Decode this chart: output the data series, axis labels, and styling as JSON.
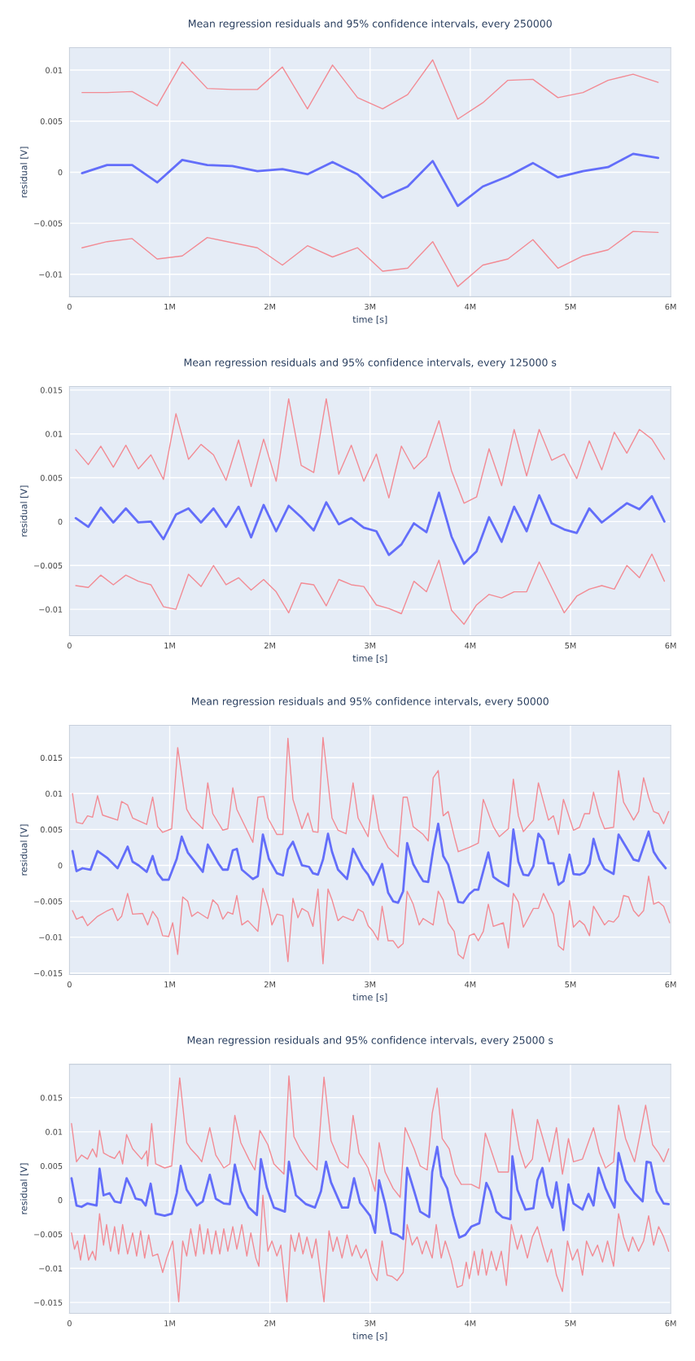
{
  "chart_data": [
    {
      "type": "line",
      "title": "Mean regression residuals and 95% confidence intervals, every 250000",
      "xlabel": "time [s]",
      "ylabel": "residual [V]",
      "grid": true,
      "x": [
        125000,
        375000,
        625000,
        875000,
        1125000,
        1375000,
        1625000,
        1875000,
        2125000,
        2375000,
        2625000,
        2875000,
        3125000,
        3375000,
        3625000,
        3875000,
        4125000,
        4375000,
        4625000,
        4875000,
        5125000,
        5375000,
        5625000,
        5875000
      ],
      "xlim": [
        0,
        6000000
      ],
      "xticks": [
        0,
        {
          "value": 1000000,
          "label": "1M"
        },
        {
          "value": 2000000,
          "label": "2M"
        },
        {
          "value": 3000000,
          "label": "3M"
        },
        {
          "value": 4000000,
          "label": "4M"
        },
        {
          "value": 5000000,
          "label": "5M"
        },
        {
          "value": 6000000,
          "label": "6M"
        }
      ],
      "ylim": [
        -0.0122,
        0.0122
      ],
      "yticks": [
        {
          "value": -0.01,
          "label": "−0.01"
        },
        {
          "value": -0.005,
          "label": "−0.005"
        },
        0,
        0.005,
        0.01
      ],
      "series": [
        {
          "color": "#f28b94",
          "values": [
            0.0078,
            0.0078,
            0.0079,
            0.0065,
            0.0108,
            0.0082,
            0.0081,
            0.0081,
            0.0103,
            0.0062,
            0.0105,
            0.0073,
            0.0062,
            0.0076,
            0.011,
            0.0052,
            0.0068,
            0.009,
            0.0091,
            0.0073,
            0.0078,
            0.009,
            0.0096,
            0.0088
          ]
        },
        {
          "color": "#f28b94",
          "values": [
            -0.0074,
            -0.0068,
            -0.0065,
            -0.0085,
            -0.0082,
            -0.0064,
            -0.0069,
            -0.0074,
            -0.0091,
            -0.0072,
            -0.0083,
            -0.0074,
            -0.0097,
            -0.0094,
            -0.0068,
            -0.0112,
            -0.0091,
            -0.0085,
            -0.0066,
            -0.0094,
            -0.0082,
            -0.0076,
            -0.0058,
            -0.0059
          ]
        },
        {
          "color": "#636efa",
          "values": [
            -0.0001,
            0.0007,
            0.0007,
            -0.001,
            0.0012,
            0.0007,
            0.0006,
            0.0001,
            0.0003,
            -0.0002,
            0.001,
            -0.0002,
            -0.0025,
            -0.0014,
            0.0011,
            -0.0033,
            -0.0014,
            -0.0004,
            0.0009,
            -0.0005,
            0.0001,
            0.0005,
            0.0018,
            0.0014
          ]
        }
      ]
    },
    {
      "type": "line",
      "title": "Mean regression residuals and 95% confidence intervals, every 125000 s",
      "xlabel": "time [s]",
      "ylabel": "residual [V]",
      "grid": true,
      "x": [
        62500,
        187500,
        312500,
        437500,
        562500,
        687500,
        812500,
        937500,
        1062500,
        1187500,
        1312500,
        1437500,
        1562500,
        1687500,
        1812500,
        1937500,
        2062500,
        2187500,
        2312500,
        2437500,
        2562500,
        2687500,
        2812500,
        2937500,
        3062500,
        3187500,
        3312500,
        3437500,
        3562500,
        3687500,
        3812500,
        3937500,
        4062500,
        4187500,
        4312500,
        4437500,
        4562500,
        4687500,
        4812500,
        4937500,
        5062500,
        5187500,
        5312500,
        5437500,
        5562500,
        5687500,
        5812500,
        5937500
      ],
      "xlim": [
        0,
        6000000
      ],
      "xticks": [
        0,
        {
          "value": 1000000,
          "label": "1M"
        },
        {
          "value": 2000000,
          "label": "2M"
        },
        {
          "value": 3000000,
          "label": "3M"
        },
        {
          "value": 4000000,
          "label": "4M"
        },
        {
          "value": 5000000,
          "label": "5M"
        },
        {
          "value": 6000000,
          "label": "6M"
        }
      ],
      "ylim": [
        -0.013,
        0.0154
      ],
      "yticks": [
        {
          "value": -0.01,
          "label": "−0.01"
        },
        {
          "value": -0.005,
          "label": "−0.005"
        },
        0,
        0.005,
        0.01,
        0.015
      ],
      "series": [
        {
          "color": "#f28b94",
          "values": [
            0.0082,
            0.0065,
            0.0086,
            0.0062,
            0.0087,
            0.006,
            0.0076,
            0.0048,
            0.0123,
            0.0071,
            0.0088,
            0.0076,
            0.0047,
            0.0093,
            0.004,
            0.0094,
            0.0046,
            0.014,
            0.0064,
            0.0056,
            0.014,
            0.0054,
            0.0087,
            0.0046,
            0.0077,
            0.0027,
            0.0086,
            0.006,
            0.0074,
            0.0115,
            0.0058,
            0.0021,
            0.0028,
            0.0083,
            0.0041,
            0.0105,
            0.0052,
            0.0105,
            0.007,
            0.0077,
            0.0049,
            0.0092,
            0.0059,
            0.0102,
            0.0078,
            0.0105,
            0.0094,
            0.0071
          ]
        },
        {
          "color": "#f28b94",
          "values": [
            -0.0073,
            -0.0075,
            -0.0061,
            -0.0072,
            -0.0061,
            -0.0068,
            -0.0072,
            -0.0097,
            -0.01,
            -0.006,
            -0.0074,
            -0.005,
            -0.0072,
            -0.0064,
            -0.0078,
            -0.0066,
            -0.008,
            -0.0104,
            -0.007,
            -0.0072,
            -0.0096,
            -0.0066,
            -0.0072,
            -0.0074,
            -0.0095,
            -0.0099,
            -0.0105,
            -0.0068,
            -0.008,
            -0.0044,
            -0.0101,
            -0.0117,
            -0.0095,
            -0.0083,
            -0.0087,
            -0.008,
            -0.008,
            -0.0046,
            -0.0075,
            -0.0104,
            -0.0085,
            -0.0077,
            -0.0073,
            -0.0077,
            -0.005,
            -0.0064,
            -0.0037,
            -0.0068
          ]
        },
        {
          "color": "#636efa",
          "values": [
            0.0004,
            -0.0006,
            0.0016,
            -0.0001,
            0.0015,
            -0.0001,
            0,
            -0.002,
            0.0008,
            0.0015,
            -0.0001,
            0.0015,
            -0.0006,
            0.0017,
            -0.0018,
            0.0019,
            -0.0011,
            0.0018,
            0.0005,
            -0.001,
            0.0022,
            -0.0003,
            0.0004,
            -0.0007,
            -0.0011,
            -0.0038,
            -0.0026,
            -0.0002,
            -0.0012,
            0.0033,
            -0.0017,
            -0.0048,
            -0.0034,
            0.0005,
            -0.0023,
            0.0017,
            -0.0011,
            0.003,
            -0.0002,
            -0.0009,
            -0.0013,
            0.0015,
            -0.0001,
            0.001,
            0.0021,
            0.0014,
            0.0029,
            0
          ]
        }
      ]
    },
    {
      "type": "line",
      "title": "Mean regression residuals and 95% confidence intervals, every 50000",
      "xlabel": "time [s]",
      "ylabel": "residual [V]",
      "grid": true,
      "xlim": [
        0,
        6000000
      ],
      "xticks": [
        0,
        {
          "value": 1000000,
          "label": "1M"
        },
        {
          "value": 2000000,
          "label": "2M"
        },
        {
          "value": 3000000,
          "label": "3M"
        },
        {
          "value": 4000000,
          "label": "4M"
        },
        {
          "value": 5000000,
          "label": "5M"
        },
        {
          "value": 6000000,
          "label": "6M"
        }
      ],
      "ylim": [
        -0.0152,
        0.0195
      ],
      "yticks": [
        {
          "value": -0.015,
          "label": "−0.015"
        },
        {
          "value": -0.01,
          "label": "−0.01"
        },
        {
          "value": -0.005,
          "label": "−0.005"
        },
        0,
        0.005,
        0.01,
        0.015
      ],
      "series": [
        {
          "color": "#f28b94",
          "x": [
            30000,
            70000,
            130000,
            180000,
            230000,
            280000,
            330000,
            480000,
            520000,
            580000,
            630000,
            770000,
            830000,
            880000,
            930000,
            1020000,
            1080000,
            1170000,
            1220000,
            1330000,
            1380000,
            1430000,
            1530000,
            1580000,
            1630000,
            1670000,
            1830000,
            1880000,
            1940000,
            1980000,
            2070000,
            2130000,
            2180000,
            2230000,
            2320000,
            2380000,
            2430000,
            2480000,
            2530000,
            2620000,
            2680000,
            2760000,
            2830000,
            2880000,
            2980000,
            3030000,
            3090000,
            3180000,
            3280000,
            3330000,
            3370000,
            3430000,
            3530000,
            3580000,
            3630000,
            3680000,
            3730000,
            3780000,
            3840000,
            3880000,
            3990000,
            4080000,
            4130000,
            4230000,
            4290000,
            4380000,
            4430000,
            4480000,
            4530000,
            4630000,
            4680000,
            4780000,
            4830000,
            4880000,
            4930000,
            5030000,
            5090000,
            5140000,
            5190000,
            5230000,
            5290000,
            5340000,
            5430000,
            5480000,
            5530000,
            5630000,
            5680000,
            5730000,
            5780000,
            5830000,
            5880000,
            5930000,
            5980000
          ],
          "values": [
            0.01,
            0.006,
            0.0058,
            0.0069,
            0.0067,
            0.0097,
            0.007,
            0.0063,
            0.0089,
            0.0084,
            0.0066,
            0.0057,
            0.0095,
            0.0054,
            0.0046,
            0.0051,
            0.0164,
            0.0078,
            0.0066,
            0.0051,
            0.0115,
            0.0072,
            0.0049,
            0.0051,
            0.0108,
            0.0078,
            0.0032,
            0.0095,
            0.0096,
            0.0066,
            0.0043,
            0.0043,
            0.0177,
            0.0092,
            0.0051,
            0.0073,
            0.0047,
            0.0046,
            0.0178,
            0.0066,
            0.0049,
            0.0044,
            0.0115,
            0.0066,
            0.004,
            0.0098,
            0.0049,
            0.0025,
            0.0012,
            0.0095,
            0.0095,
            0.0054,
            0.0043,
            0.0034,
            0.0122,
            0.0132,
            0.0069,
            0.0075,
            0.004,
            0.0019,
            0.0025,
            0.0031,
            0.0092,
            0.0054,
            0.004,
            0.0051,
            0.012,
            0.0069,
            0.0047,
            0.0063,
            0.0115,
            0.0063,
            0.0069,
            0.0043,
            0.0092,
            0.0049,
            0.0053,
            0.0072,
            0.0072,
            0.0102,
            0.0069,
            0.0051,
            0.0053,
            0.0132,
            0.0088,
            0.0063,
            0.0075,
            0.0122,
            0.0095,
            0.0075,
            0.0072,
            0.0058,
            0.0075
          ]
        },
        {
          "color": "#f28b94",
          "x": [
            30000,
            70000,
            130000,
            180000,
            280000,
            380000,
            430000,
            480000,
            520000,
            580000,
            630000,
            730000,
            780000,
            830000,
            880000,
            930000,
            990000,
            1030000,
            1080000,
            1130000,
            1180000,
            1220000,
            1280000,
            1380000,
            1430000,
            1480000,
            1530000,
            1580000,
            1630000,
            1670000,
            1720000,
            1780000,
            1880000,
            1930000,
            1990000,
            2020000,
            2070000,
            2130000,
            2180000,
            2230000,
            2280000,
            2320000,
            2380000,
            2430000,
            2480000,
            2530000,
            2580000,
            2620000,
            2680000,
            2730000,
            2830000,
            2880000,
            2930000,
            2980000,
            3030000,
            3080000,
            3120000,
            3180000,
            3230000,
            3280000,
            3330000,
            3370000,
            3430000,
            3490000,
            3530000,
            3630000,
            3680000,
            3730000,
            3780000,
            3840000,
            3880000,
            3930000,
            3990000,
            4040000,
            4080000,
            4130000,
            4180000,
            4230000,
            4330000,
            4380000,
            4430000,
            4480000,
            4530000,
            4630000,
            4680000,
            4730000,
            4830000,
            4880000,
            4930000,
            4990000,
            5030000,
            5090000,
            5140000,
            5190000,
            5230000,
            5340000,
            5380000,
            5430000,
            5480000,
            5530000,
            5580000,
            5630000,
            5680000,
            5730000,
            5780000,
            5830000,
            5880000,
            5930000,
            5990000
          ],
          "values": [
            -0.0063,
            -0.0075,
            -0.0071,
            -0.0084,
            -0.0071,
            -0.0063,
            -0.006,
            -0.0077,
            -0.0071,
            -0.0039,
            -0.0068,
            -0.0067,
            -0.0083,
            -0.0064,
            -0.0074,
            -0.0098,
            -0.0099,
            -0.008,
            -0.0124,
            -0.0044,
            -0.005,
            -0.0071,
            -0.0065,
            -0.0074,
            -0.0048,
            -0.0055,
            -0.0075,
            -0.0065,
            -0.0068,
            -0.0042,
            -0.0083,
            -0.0077,
            -0.0092,
            -0.0032,
            -0.006,
            -0.0083,
            -0.0068,
            -0.007,
            -0.0134,
            -0.0046,
            -0.0073,
            -0.006,
            -0.0065,
            -0.0085,
            -0.0033,
            -0.0137,
            -0.0033,
            -0.0048,
            -0.0077,
            -0.0071,
            -0.0077,
            -0.0061,
            -0.0065,
            -0.0084,
            -0.0092,
            -0.0104,
            -0.0057,
            -0.0105,
            -0.0105,
            -0.0115,
            -0.0109,
            -0.0036,
            -0.0054,
            -0.0083,
            -0.0074,
            -0.0083,
            -0.0036,
            -0.0048,
            -0.008,
            -0.0092,
            -0.0124,
            -0.013,
            -0.0098,
            -0.0095,
            -0.0105,
            -0.0092,
            -0.0054,
            -0.0085,
            -0.008,
            -0.0115,
            -0.0039,
            -0.0051,
            -0.0086,
            -0.006,
            -0.006,
            -0.0039,
            -0.0068,
            -0.0112,
            -0.0118,
            -0.0049,
            -0.0086,
            -0.0077,
            -0.0083,
            -0.0098,
            -0.0057,
            -0.0083,
            -0.0077,
            -0.0079,
            -0.0071,
            -0.0042,
            -0.0044,
            -0.0063,
            -0.0071,
            -0.0063,
            -0.0015,
            -0.0054,
            -0.0051,
            -0.0057,
            -0.008
          ]
        },
        {
          "color": "#636efa",
          "x": [
            30000,
            70000,
            130000,
            210000,
            280000,
            380000,
            480000,
            580000,
            630000,
            690000,
            770000,
            830000,
            880000,
            930000,
            990000,
            1070000,
            1120000,
            1180000,
            1330000,
            1380000,
            1490000,
            1530000,
            1580000,
            1630000,
            1670000,
            1720000,
            1830000,
            1880000,
            1930000,
            1990000,
            2070000,
            2130000,
            2180000,
            2230000,
            2320000,
            2390000,
            2430000,
            2480000,
            2530000,
            2580000,
            2620000,
            2680000,
            2770000,
            2830000,
            2930000,
            2980000,
            3030000,
            3120000,
            3180000,
            3230000,
            3280000,
            3330000,
            3370000,
            3430000,
            3490000,
            3530000,
            3580000,
            3630000,
            3680000,
            3730000,
            3780000,
            3880000,
            3930000,
            3990000,
            4040000,
            4080000,
            4180000,
            4230000,
            4290000,
            4380000,
            4430000,
            4480000,
            4530000,
            4580000,
            4630000,
            4680000,
            4730000,
            4780000,
            4830000,
            4880000,
            4930000,
            4990000,
            5030000,
            5090000,
            5140000,
            5190000,
            5230000,
            5290000,
            5340000,
            5430000,
            5480000,
            5570000,
            5630000,
            5680000,
            5780000,
            5830000,
            5880000,
            5950000
          ],
          "values": [
            0.002,
            -0.0008,
            -0.0004,
            -0.0006,
            0.002,
            0.001,
            -0.0004,
            0.0026,
            0.0005,
            0,
            -0.0009,
            0.0013,
            -0.0011,
            -0.002,
            -0.002,
            0.0009,
            0.004,
            0.0018,
            -0.0009,
            0.0029,
            0.0002,
            -0.0006,
            -0.0006,
            0.0021,
            0.0023,
            -0.0006,
            -0.0019,
            -0.0015,
            0.0043,
            0.0009,
            -0.0011,
            -0.0014,
            0.0022,
            0.0033,
            0,
            -0.0002,
            -0.0011,
            -0.0013,
            0.0008,
            0.0044,
            0.0019,
            -0.0006,
            -0.0019,
            0.0023,
            -0.0004,
            -0.0013,
            -0.0027,
            0.0002,
            -0.0038,
            -0.005,
            -0.0052,
            -0.0036,
            0.0031,
            0.0002,
            -0.0013,
            -0.0022,
            -0.0023,
            0.0022,
            0.0058,
            0.0013,
            0.0001,
            -0.0051,
            -0.0052,
            -0.004,
            -0.0034,
            -0.0034,
            0.0018,
            -0.0016,
            -0.0022,
            -0.0029,
            0.005,
            0.0005,
            -0.0013,
            -0.0014,
            -0.0001,
            0.0044,
            0.0035,
            0.0003,
            0.0003,
            -0.0027,
            -0.0022,
            0.0015,
            -0.0012,
            -0.0013,
            -0.001,
            0.0002,
            0.0037,
            0.0008,
            -0.0005,
            -0.0012,
            0.0043,
            0.0022,
            0.0008,
            0.0006,
            0.0047,
            0.0019,
            0.0008,
            -0.0004
          ]
        }
      ]
    },
    {
      "type": "line",
      "title": "Mean regression residuals and 95% confidence intervals, every 25000 s",
      "xlabel": "time [s]",
      "ylabel": "residual [V]",
      "grid": true,
      "xlim": [
        0,
        6000000
      ],
      "xticks": [
        0,
        {
          "value": 1000000,
          "label": "1M"
        },
        {
          "value": 2000000,
          "label": "2M"
        },
        {
          "value": 3000000,
          "label": "3M"
        },
        {
          "value": 4000000,
          "label": "4M"
        },
        {
          "value": 5000000,
          "label": "5M"
        },
        {
          "value": 6000000,
          "label": "6M"
        }
      ],
      "ylim": [
        -0.0166,
        0.0199
      ],
      "yticks": [
        {
          "value": -0.015,
          "label": "−0.015"
        },
        {
          "value": -0.01,
          "label": "−0.01"
        },
        {
          "value": -0.005,
          "label": "−0.005"
        },
        0,
        0.005,
        0.01,
        0.015
      ],
      "series": [
        {
          "color": "#f28b94",
          "x": [
            20000,
            70000,
            120000,
            180000,
            230000,
            270000,
            300000,
            340000,
            400000,
            450000,
            500000,
            530000,
            570000,
            630000,
            720000,
            770000,
            780000,
            820000,
            860000,
            950000,
            1020000,
            1100000,
            1170000,
            1210000,
            1280000,
            1320000,
            1400000,
            1460000,
            1540000,
            1600000,
            1650000,
            1710000,
            1790000,
            1850000,
            1900000,
            1980000,
            2040000,
            2140000,
            2190000,
            2240000,
            2300000,
            2390000,
            2470000,
            2540000,
            2610000,
            2700000,
            2780000,
            2830000,
            2890000,
            2980000,
            3050000,
            3090000,
            3150000,
            3230000,
            3300000,
            3350000,
            3440000,
            3500000,
            3570000,
            3620000,
            3670000,
            3720000,
            3790000,
            3850000,
            3910000,
            4010000,
            4090000,
            4150000,
            4210000,
            4280000,
            4380000,
            4420000,
            4490000,
            4550000,
            4620000,
            4670000,
            4720000,
            4790000,
            4860000,
            4920000,
            4980000,
            5030000,
            5120000,
            5230000,
            5290000,
            5350000,
            5430000,
            5480000,
            5550000,
            5640000,
            5690000,
            5750000,
            5820000,
            5880000,
            5930000,
            5980000
          ],
          "values": [
            0.0112,
            0.0056,
            0.0066,
            0.006,
            0.0075,
            0.0063,
            0.0102,
            0.0069,
            0.0064,
            0.0061,
            0.0072,
            0.0053,
            0.0096,
            0.0075,
            0.006,
            0.0072,
            0.005,
            0.0112,
            0.0053,
            0.0047,
            0.005,
            0.0179,
            0.0084,
            0.0075,
            0.0064,
            0.0056,
            0.0106,
            0.0066,
            0.0047,
            0.0053,
            0.0124,
            0.0084,
            0.006,
            0.0044,
            0.0102,
            0.0081,
            0.0053,
            0.0038,
            0.0182,
            0.0093,
            0.0075,
            0.0056,
            0.0044,
            0.018,
            0.0087,
            0.0056,
            0.0047,
            0.0124,
            0.0069,
            0.0047,
            0.0013,
            0.0084,
            0.0041,
            0.0017,
            0.0004,
            0.0106,
            0.0075,
            0.005,
            0.0044,
            0.0127,
            0.0164,
            0.009,
            0.0075,
            0.0038,
            0.0023,
            0.0023,
            0.0017,
            0.0098,
            0.0072,
            0.0041,
            0.0041,
            0.0133,
            0.0075,
            0.0047,
            0.006,
            0.0118,
            0.0093,
            0.0056,
            0.0106,
            0.0038,
            0.009,
            0.0056,
            0.006,
            0.0106,
            0.0069,
            0.0047,
            0.0056,
            0.0139,
            0.009,
            0.0056,
            0.0093,
            0.0139,
            0.0081,
            0.0069,
            0.0056,
            0.0075
          ]
        },
        {
          "color": "#f28b94",
          "x": [
            20000,
            50000,
            80000,
            110000,
            150000,
            190000,
            230000,
            260000,
            300000,
            340000,
            370000,
            410000,
            450000,
            490000,
            530000,
            580000,
            630000,
            670000,
            710000,
            750000,
            790000,
            830000,
            880000,
            930000,
            970000,
            1030000,
            1090000,
            1130000,
            1170000,
            1210000,
            1260000,
            1300000,
            1340000,
            1380000,
            1420000,
            1460000,
            1500000,
            1540000,
            1580000,
            1630000,
            1670000,
            1720000,
            1770000,
            1810000,
            1860000,
            1890000,
            1930000,
            1980000,
            2020000,
            2070000,
            2110000,
            2170000,
            2210000,
            2250000,
            2290000,
            2330000,
            2370000,
            2420000,
            2460000,
            2540000,
            2590000,
            2630000,
            2670000,
            2720000,
            2770000,
            2820000,
            2860000,
            2910000,
            2960000,
            3020000,
            3070000,
            3120000,
            3170000,
            3220000,
            3270000,
            3330000,
            3370000,
            3420000,
            3470000,
            3520000,
            3560000,
            3620000,
            3660000,
            3710000,
            3750000,
            3810000,
            3870000,
            3920000,
            3960000,
            3990000,
            4040000,
            4080000,
            4120000,
            4160000,
            4210000,
            4260000,
            4310000,
            4360000,
            4410000,
            4470000,
            4510000,
            4570000,
            4620000,
            4670000,
            4720000,
            4770000,
            4810000,
            4860000,
            4920000,
            4970000,
            5020000,
            5070000,
            5120000,
            5160000,
            5220000,
            5270000,
            5320000,
            5370000,
            5430000,
            5480000,
            5530000,
            5580000,
            5620000,
            5680000,
            5730000,
            5780000,
            5830000,
            5880000,
            5930000,
            5980000
          ],
          "values": [
            -0.0048,
            -0.0072,
            -0.006,
            -0.0088,
            -0.0051,
            -0.0088,
            -0.0075,
            -0.0088,
            -0.002,
            -0.0066,
            -0.0036,
            -0.0075,
            -0.0039,
            -0.0079,
            -0.0036,
            -0.0079,
            -0.0048,
            -0.0082,
            -0.0045,
            -0.0085,
            -0.0051,
            -0.0082,
            -0.0079,
            -0.0106,
            -0.0085,
            -0.006,
            -0.0149,
            -0.006,
            -0.0082,
            -0.0042,
            -0.0082,
            -0.0036,
            -0.0079,
            -0.0042,
            -0.0079,
            -0.0045,
            -0.0079,
            -0.0042,
            -0.0075,
            -0.0039,
            -0.0072,
            -0.0036,
            -0.0082,
            -0.0048,
            -0.0085,
            -0.0097,
            0.0007,
            -0.0075,
            -0.006,
            -0.0082,
            -0.0066,
            -0.0149,
            -0.0051,
            -0.0075,
            -0.0048,
            -0.0079,
            -0.0054,
            -0.0085,
            -0.0057,
            -0.0149,
            -0.0045,
            -0.0075,
            -0.0054,
            -0.0085,
            -0.0051,
            -0.0082,
            -0.0066,
            -0.0085,
            -0.0072,
            -0.0106,
            -0.0118,
            -0.006,
            -0.011,
            -0.0112,
            -0.0118,
            -0.0106,
            -0.0036,
            -0.0066,
            -0.0054,
            -0.0079,
            -0.006,
            -0.0085,
            -0.0036,
            -0.0085,
            -0.006,
            -0.0088,
            -0.0128,
            -0.0125,
            -0.0091,
            -0.0115,
            -0.0075,
            -0.011,
            -0.0072,
            -0.011,
            -0.0075,
            -0.0103,
            -0.0075,
            -0.0125,
            -0.0036,
            -0.0072,
            -0.0051,
            -0.0085,
            -0.0054,
            -0.0039,
            -0.0066,
            -0.0091,
            -0.0072,
            -0.011,
            -0.0134,
            -0.006,
            -0.0088,
            -0.0072,
            -0.011,
            -0.006,
            -0.0082,
            -0.0066,
            -0.0091,
            -0.006,
            -0.0097,
            -0.002,
            -0.0054,
            -0.0075,
            -0.0054,
            -0.0075,
            -0.006,
            -0.0023,
            -0.0066,
            -0.0039,
            -0.0054,
            -0.0075
          ]
        },
        {
          "color": "#636efa",
          "x": [
            20000,
            70000,
            120000,
            180000,
            270000,
            300000,
            340000,
            400000,
            450000,
            510000,
            570000,
            620000,
            660000,
            720000,
            760000,
            810000,
            860000,
            950000,
            1020000,
            1070000,
            1110000,
            1170000,
            1270000,
            1330000,
            1400000,
            1460000,
            1540000,
            1600000,
            1650000,
            1710000,
            1790000,
            1870000,
            1910000,
            1970000,
            2040000,
            2150000,
            2190000,
            2260000,
            2360000,
            2450000,
            2510000,
            2560000,
            2610000,
            2720000,
            2780000,
            2840000,
            2900000,
            3000000,
            3050000,
            3090000,
            3150000,
            3210000,
            3270000,
            3330000,
            3370000,
            3440000,
            3500000,
            3590000,
            3620000,
            3670000,
            3710000,
            3770000,
            3830000,
            3890000,
            3950000,
            4010000,
            4090000,
            4160000,
            4200000,
            4260000,
            4320000,
            4400000,
            4420000,
            4470000,
            4550000,
            4630000,
            4670000,
            4720000,
            4770000,
            4820000,
            4860000,
            4930000,
            4980000,
            5030000,
            5120000,
            5180000,
            5230000,
            5280000,
            5350000,
            5440000,
            5480000,
            5550000,
            5640000,
            5720000,
            5760000,
            5800000,
            5860000,
            5930000,
            5980000
          ],
          "values": [
            0.0032,
            -0.0008,
            -0.001,
            -0.0005,
            -0.0008,
            0.0046,
            0.0007,
            0.001,
            -0.0002,
            -0.0004,
            0.0032,
            0.0017,
            0.0002,
            0,
            -0.0008,
            0.0024,
            -0.002,
            -0.0023,
            -0.002,
            0.001,
            0.005,
            0.0015,
            -0.0008,
            -0.0002,
            0.0037,
            0.0002,
            -0.0005,
            -0.0006,
            0.0052,
            0.0013,
            -0.0011,
            -0.0022,
            0.006,
            0.0018,
            -0.0011,
            -0.0017,
            0.0056,
            0.0007,
            -0.0006,
            -0.0011,
            0.0013,
            0.0056,
            0.0026,
            -0.0011,
            -0.0011,
            0.0032,
            -0.0004,
            -0.0023,
            -0.0048,
            0.0029,
            -0.0005,
            -0.0048,
            -0.0051,
            -0.0057,
            0.0047,
            0.0013,
            -0.0017,
            -0.0025,
            0.0041,
            0.0078,
            0.0035,
            0.0017,
            -0.0023,
            -0.0055,
            -0.0051,
            -0.0039,
            -0.0034,
            0.0025,
            0.0013,
            -0.0017,
            -0.0025,
            -0.0028,
            0.0064,
            0.0015,
            -0.0014,
            -0.0012,
            0.0029,
            0.0047,
            0.0007,
            -0.0011,
            0.0026,
            -0.0044,
            0.0023,
            -0.0005,
            -0.0014,
            0.0009,
            -0.0008,
            0.0047,
            0.0017,
            -0.0011,
            0.0069,
            0.0029,
            0.001,
            -0.0002,
            0.0056,
            0.0055,
            0.0013,
            -0.0005,
            -0.0006
          ]
        }
      ]
    }
  ]
}
